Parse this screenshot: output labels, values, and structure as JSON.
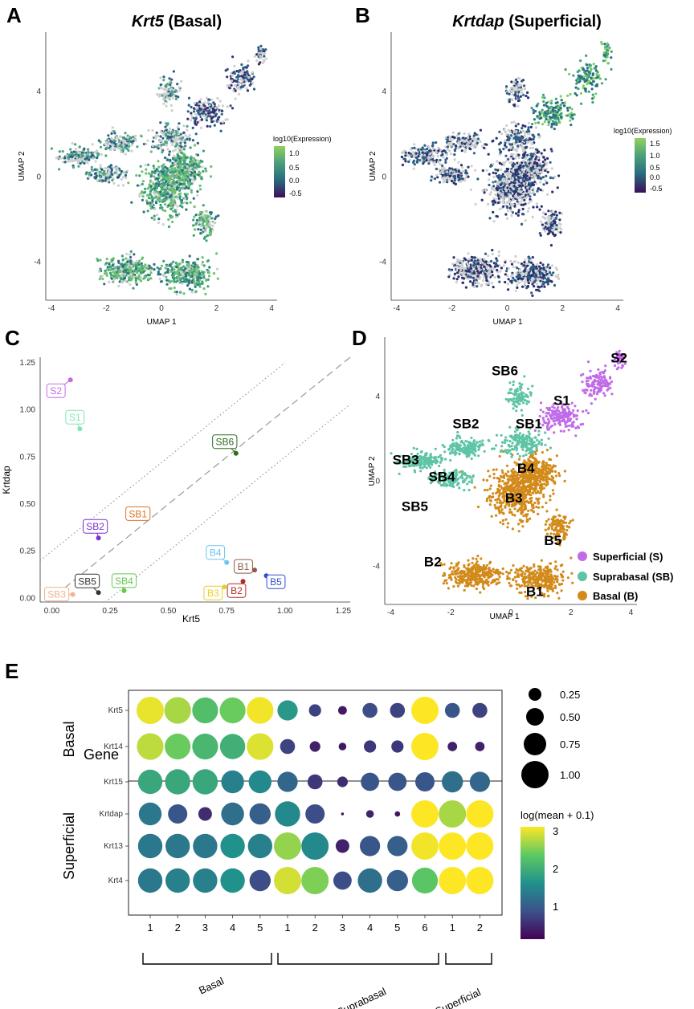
{
  "figure": {
    "panel_letters": [
      "A",
      "B",
      "C",
      "D",
      "E"
    ]
  },
  "chart_data": [
    {
      "panel": "A",
      "type": "scatter",
      "title_gene": "Krt5",
      "title_suffix": " (Basal)",
      "xlabel": "UMAP 1",
      "ylabel": "UMAP 2",
      "xticks": [
        "-4",
        "-2",
        "0",
        "2",
        "4"
      ],
      "yticks": [
        "4",
        "0",
        "-4"
      ],
      "xlim": [
        -4.2,
        4.2
      ],
      "ylim": [
        -5.8,
        6.8
      ],
      "colorbar_title": "log10(Expression)",
      "colorbar_ticks": [
        "1.0",
        "0.5",
        "0.0",
        "-0.5"
      ]
    },
    {
      "panel": "B",
      "type": "scatter",
      "title_gene": "Krtdap",
      "title_suffix": " (Superficial)",
      "xlabel": "UMAP 1",
      "ylabel": "UMAP 2",
      "xticks": [
        "-4",
        "-2",
        "0",
        "2",
        "4"
      ],
      "yticks": [
        "4",
        "0",
        "-4"
      ],
      "xlim": [
        -4.2,
        4.2
      ],
      "ylim": [
        -5.8,
        6.8
      ],
      "colorbar_title": "log10(Expression)",
      "colorbar_ticks": [
        "1.5",
        "1.0",
        "0.5",
        "0.0",
        "-0.5"
      ]
    },
    {
      "panel": "C",
      "type": "scatter",
      "xlabel": "Krt5",
      "ylabel": "Krtdap",
      "xlim": [
        -0.05,
        1.28
      ],
      "ylim": [
        -0.02,
        1.28
      ],
      "xticks": [
        "0.00",
        "0.25",
        "0.50",
        "0.75",
        "1.00",
        "1.25"
      ],
      "yticks": [
        "0.00",
        "0.25",
        "0.50",
        "0.75",
        "1.00",
        "1.25"
      ],
      "points": [
        {
          "label": "S2",
          "x": 0.08,
          "y": 1.16,
          "color": "#c36be0"
        },
        {
          "label": "S1",
          "x": 0.12,
          "y": 0.9,
          "color": "#7fe6b3"
        },
        {
          "label": "SB6",
          "x": 0.79,
          "y": 0.77,
          "color": "#2e6b1f"
        },
        {
          "label": "SB1",
          "x": 0.39,
          "y": 0.43,
          "color": "#d9722a"
        },
        {
          "label": "SB2",
          "x": 0.2,
          "y": 0.32,
          "color": "#7a2fd0"
        },
        {
          "label": "B4",
          "x": 0.75,
          "y": 0.19,
          "color": "#6ec3ef"
        },
        {
          "label": "B1",
          "x": 0.87,
          "y": 0.15,
          "color": "#8c5a45"
        },
        {
          "label": "B5",
          "x": 0.92,
          "y": 0.12,
          "color": "#2f4fd6"
        },
        {
          "label": "B2",
          "x": 0.82,
          "y": 0.09,
          "color": "#b52a2a"
        },
        {
          "label": "B3",
          "x": 0.74,
          "y": 0.06,
          "color": "#e6d02a"
        },
        {
          "label": "SB5",
          "x": 0.2,
          "y": 0.03,
          "color": "#333333"
        },
        {
          "label": "SB4",
          "x": 0.31,
          "y": 0.04,
          "color": "#62c94b"
        },
        {
          "label": "SB3",
          "x": 0.09,
          "y": 0.02,
          "color": "#f0b48f"
        }
      ],
      "lines": [
        {
          "intercept": 0.0,
          "slope": 1,
          "style": "dashed"
        },
        {
          "intercept": 0.25,
          "slope": 1,
          "style": "dotted"
        },
        {
          "intercept": -0.25,
          "slope": 1,
          "style": "dotted"
        }
      ]
    },
    {
      "panel": "D",
      "type": "scatter",
      "xlabel": "UMAP 1",
      "ylabel": "UMAP 2",
      "xticks": [
        "-4",
        "-2",
        "0",
        "2",
        "4"
      ],
      "yticks": [
        "4",
        "0",
        "-4"
      ],
      "xlim": [
        -4.2,
        4.2
      ],
      "ylim": [
        -5.8,
        6.8
      ],
      "cluster_labels": [
        {
          "text": "S2",
          "x": 3.6,
          "y": 5.6
        },
        {
          "text": "S1",
          "x": 1.7,
          "y": 3.6
        },
        {
          "text": "SB6",
          "x": -0.2,
          "y": 5.0
        },
        {
          "text": "SB1",
          "x": 0.6,
          "y": 2.5
        },
        {
          "text": "SB2",
          "x": -1.5,
          "y": 2.5
        },
        {
          "text": "SB3",
          "x": -3.5,
          "y": 0.8
        },
        {
          "text": "SB4",
          "x": -2.3,
          "y": 0.0
        },
        {
          "text": "B4",
          "x": 0.5,
          "y": 0.4
        },
        {
          "text": "B3",
          "x": 0.1,
          "y": -1.0
        },
        {
          "text": "SB5",
          "x": -3.2,
          "y": -1.4
        },
        {
          "text": "B5",
          "x": 1.4,
          "y": -3.0
        },
        {
          "text": "B2",
          "x": -2.6,
          "y": -4.0
        },
        {
          "text": "B1",
          "x": 0.8,
          "y": -5.4
        }
      ],
      "legend": [
        {
          "label": "Superficial (S)",
          "color": "#c06be8"
        },
        {
          "label": "Suprabasal (SB)",
          "color": "#5ec4a6"
        },
        {
          "label": "Basal (B)",
          "color": "#d28a1a"
        }
      ]
    },
    {
      "panel": "E",
      "type": "dotplot",
      "ylabel": "Gene",
      "genes": [
        "Krt5",
        "Krt14",
        "Krt15",
        "Krtdap",
        "Krt13",
        "Krt4"
      ],
      "gene_groups": [
        {
          "label": "Basal",
          "genes": [
            "Krt5",
            "Krt14",
            "Krt15"
          ]
        },
        {
          "label": "Superficial",
          "genes": [
            "Krtdap",
            "Krt13",
            "Krt4"
          ]
        }
      ],
      "columns": [
        "1",
        "2",
        "3",
        "4",
        "5",
        "1",
        "2",
        "3",
        "4",
        "5",
        "6",
        "1",
        "2"
      ],
      "column_groups": [
        {
          "label": "Basal",
          "count": 5
        },
        {
          "label": "Suprabasal",
          "count": 6
        },
        {
          "label": "Superficial",
          "count": 2
        }
      ],
      "values_color": [
        [
          2.9,
          2.6,
          2.1,
          2.3,
          2.95,
          1.6,
          0.6,
          0.2,
          0.7,
          0.6,
          3.0,
          0.8,
          0.6
        ],
        [
          2.7,
          2.3,
          2.0,
          1.9,
          2.85,
          0.6,
          0.3,
          0.2,
          0.5,
          0.5,
          3.0,
          0.3,
          0.3
        ],
        [
          1.8,
          1.8,
          1.8,
          1.3,
          1.4,
          1.0,
          0.5,
          0.4,
          0.8,
          0.8,
          0.8,
          1.1,
          1.0
        ],
        [
          1.2,
          0.8,
          0.4,
          1.1,
          0.9,
          1.4,
          0.7,
          0.1,
          0.3,
          0.2,
          3.0,
          2.6,
          3.0
        ],
        [
          1.2,
          1.2,
          1.2,
          1.5,
          1.3,
          2.5,
          1.4,
          0.3,
          0.8,
          0.9,
          2.95,
          3.0,
          3.0
        ],
        [
          1.2,
          1.3,
          1.3,
          1.5,
          0.7,
          2.8,
          2.4,
          0.7,
          1.1,
          0.9,
          2.2,
          3.0,
          3.0
        ]
      ],
      "values_size": [
        [
          1.0,
          0.95,
          0.9,
          0.9,
          0.95,
          0.55,
          0.2,
          0.1,
          0.3,
          0.3,
          1.0,
          0.3,
          0.3
        ],
        [
          0.95,
          0.9,
          0.9,
          0.85,
          0.95,
          0.3,
          0.15,
          0.08,
          0.2,
          0.2,
          1.0,
          0.12,
          0.12
        ],
        [
          0.8,
          0.85,
          0.85,
          0.7,
          0.7,
          0.55,
          0.3,
          0.15,
          0.45,
          0.45,
          0.5,
          0.6,
          0.55
        ],
        [
          0.7,
          0.5,
          0.25,
          0.7,
          0.6,
          0.85,
          0.5,
          0.01,
          0.08,
          0.04,
          1.0,
          1.0,
          1.0
        ],
        [
          0.8,
          0.8,
          0.8,
          0.8,
          0.8,
          1.0,
          1.0,
          0.25,
          0.55,
          0.55,
          1.0,
          1.0,
          1.0
        ],
        [
          0.8,
          0.8,
          0.8,
          0.8,
          0.6,
          1.0,
          1.0,
          0.45,
          0.8,
          0.6,
          0.9,
          1.0,
          1.0
        ]
      ],
      "size_legend": [
        "0.25",
        "0.50",
        "0.75",
        "1.00"
      ],
      "color_legend_title": "log(mean + 0.1)",
      "color_legend_ticks": [
        "3",
        "2",
        "1"
      ],
      "color_range": [
        0,
        3
      ]
    }
  ]
}
